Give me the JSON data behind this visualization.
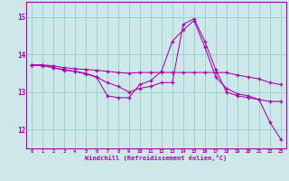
{
  "xlabel": "Windchill (Refroidissement éolien,°C)",
  "bg_color": "#cce8e8",
  "line_color": "#aa00aa",
  "grid_color": "#99cccc",
  "spine_color": "#aa00aa",
  "xlim": [
    -0.5,
    23.5
  ],
  "ylim": [
    11.5,
    15.4
  ],
  "yticks": [
    12,
    13,
    14,
    15
  ],
  "xticks": [
    0,
    1,
    2,
    3,
    4,
    5,
    6,
    7,
    8,
    9,
    10,
    11,
    12,
    13,
    14,
    15,
    16,
    17,
    18,
    19,
    20,
    21,
    22,
    23
  ],
  "line1_x": [
    0,
    1,
    2,
    3,
    4,
    5,
    6,
    7,
    8,
    9,
    10,
    11,
    12,
    13,
    14,
    15,
    16,
    17,
    18,
    19,
    20,
    21,
    22,
    23
  ],
  "line1_y": [
    13.72,
    13.72,
    13.7,
    13.65,
    13.62,
    13.6,
    13.58,
    13.55,
    13.52,
    13.5,
    13.52,
    13.52,
    13.52,
    13.52,
    13.52,
    13.52,
    13.52,
    13.52,
    13.52,
    13.45,
    13.4,
    13.35,
    13.25,
    13.2
  ],
  "line2_x": [
    0,
    1,
    2,
    3,
    4,
    5,
    6,
    7,
    8,
    9,
    10,
    11,
    12,
    13,
    14,
    15,
    16,
    17,
    18,
    19,
    20,
    21,
    22,
    23
  ],
  "line2_y": [
    13.72,
    13.72,
    13.65,
    13.58,
    13.55,
    13.5,
    13.4,
    13.25,
    13.15,
    13.0,
    13.1,
    13.15,
    13.25,
    13.25,
    14.8,
    14.95,
    14.35,
    13.6,
    13.0,
    12.9,
    12.85,
    12.8,
    12.75,
    12.75
  ],
  "line3_x": [
    0,
    1,
    2,
    3,
    4,
    5,
    6,
    7,
    8,
    9,
    10,
    11,
    12,
    13,
    14,
    15,
    16,
    17,
    18,
    19,
    20,
    21,
    22,
    23
  ],
  "line3_y": [
    13.72,
    13.7,
    13.65,
    13.6,
    13.55,
    13.48,
    13.4,
    12.9,
    12.85,
    12.85,
    13.2,
    13.3,
    13.55,
    14.35,
    14.65,
    14.9,
    14.2,
    13.4,
    13.1,
    12.95,
    12.9,
    12.8,
    12.2,
    11.75
  ]
}
